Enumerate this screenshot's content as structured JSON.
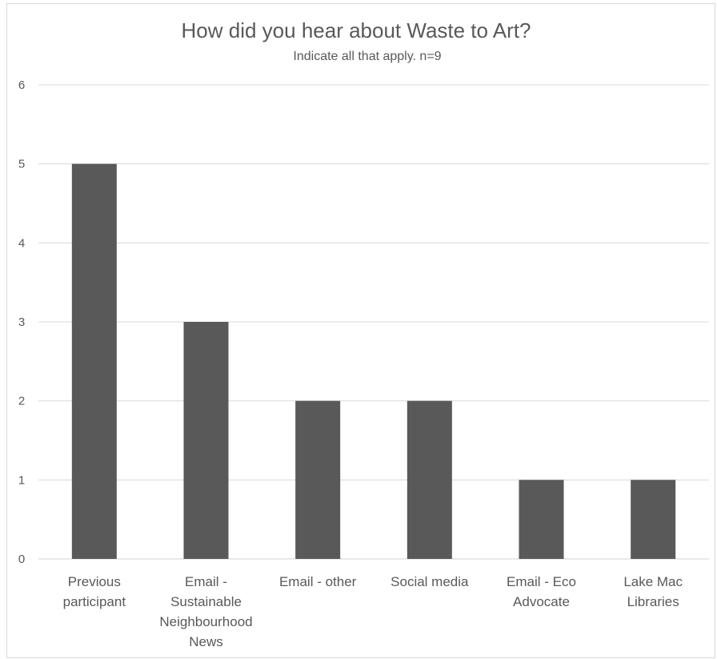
{
  "chart_data": {
    "type": "bar",
    "title": "How did you hear about Waste to Art?",
    "subtitle": "Indicate all that apply. n=9",
    "categories": [
      "Previous participant",
      "Email - Sustainable Neighbourhood News",
      "Email - other",
      "Social media",
      "Email - Eco Advocate",
      "Lake Mac Libraries"
    ],
    "category_label_lines": [
      [
        "Previous",
        "participant"
      ],
      [
        "Email -",
        "Sustainable",
        "Neighbourhood",
        "News"
      ],
      [
        "Email - other"
      ],
      [
        "Social media"
      ],
      [
        "Email - Eco",
        "Advocate"
      ],
      [
        "Lake Mac",
        "Libraries"
      ]
    ],
    "values": [
      5,
      3,
      2,
      2,
      1,
      1
    ],
    "ylim": [
      0,
      6
    ],
    "yticks": [
      0,
      1,
      2,
      3,
      4,
      5,
      6
    ],
    "xlabel": "",
    "ylabel": "",
    "grid": true,
    "bar_color": "#595959"
  }
}
